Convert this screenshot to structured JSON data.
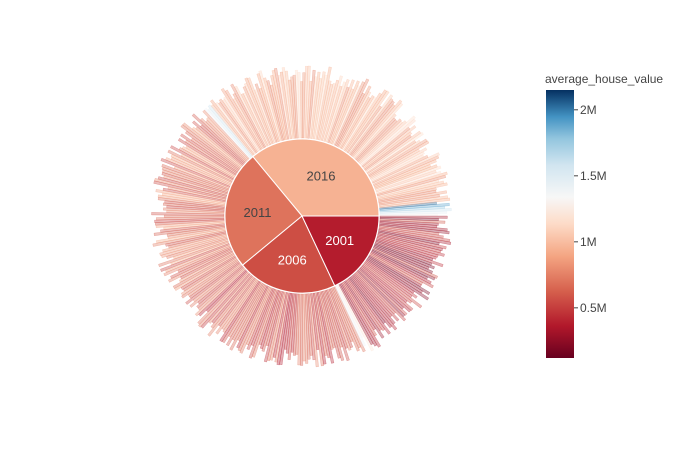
{
  "chart_data": {
    "type": "sunburst",
    "title": "",
    "inner_ring": [
      {
        "label": "2016",
        "value": 0.36,
        "avg_house_value": 950000
      },
      {
        "label": "2011",
        "value": 0.25,
        "avg_house_value": 700000
      },
      {
        "label": "2006",
        "value": 0.21,
        "avg_house_value": 560000
      },
      {
        "label": "2001",
        "value": 0.18,
        "avg_house_value": 380000
      }
    ],
    "outer_ring_note": "many neighbourhood leaf segments per year, coloured by average_house_value",
    "colorbar": {
      "title": "average_house_value",
      "colorscale": "RdBu",
      "range": [
        120000,
        2150000
      ],
      "ticks": [
        {
          "value": 500000,
          "label": "0.5M"
        },
        {
          "value": 1000000,
          "label": "1M"
        },
        {
          "value": 1500000,
          "label": "1.5M"
        },
        {
          "value": 2000000,
          "label": "2M"
        }
      ]
    }
  }
}
